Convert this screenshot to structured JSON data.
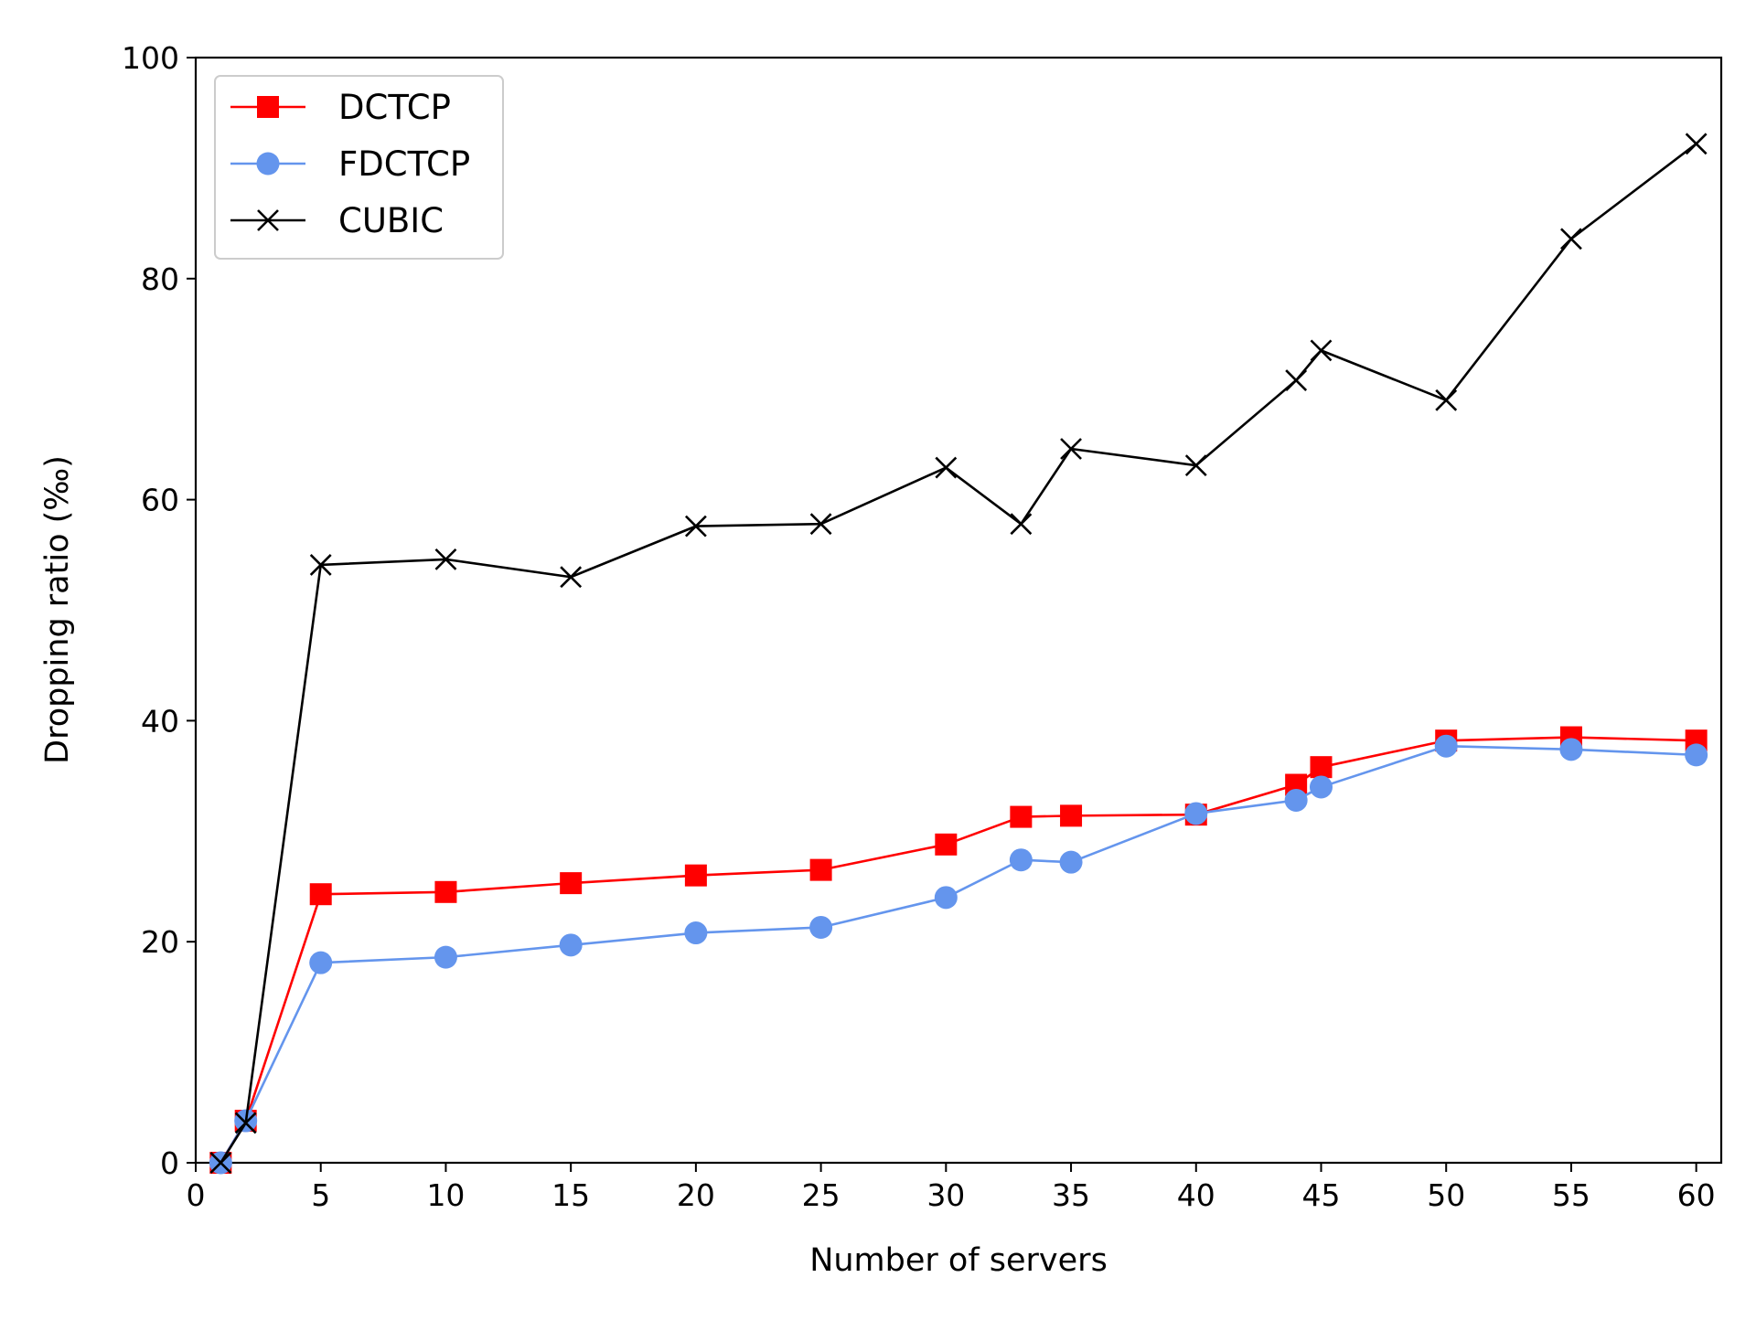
{
  "chart_data": {
    "type": "line",
    "xlabel": "Number of servers",
    "ylabel": "Dropping ratio (‰)",
    "xlim": [
      0,
      61
    ],
    "ylim": [
      0,
      100
    ],
    "xticks": [
      0,
      5,
      10,
      15,
      20,
      25,
      30,
      35,
      40,
      45,
      50,
      55,
      60
    ],
    "yticks": [
      0,
      20,
      40,
      60,
      80,
      100
    ],
    "grid": false,
    "legend_position": "top-left",
    "series": [
      {
        "name": "DCTCP",
        "color": "#ff0000",
        "marker": "square",
        "x": [
          1,
          2,
          5,
          10,
          15,
          20,
          25,
          30,
          33,
          35,
          40,
          44,
          45,
          50,
          55,
          60
        ],
        "y": [
          0,
          3.8,
          24.3,
          24.5,
          25.3,
          26.0,
          26.5,
          28.8,
          31.3,
          31.4,
          31.5,
          34.2,
          35.8,
          38.2,
          38.5,
          38.2
        ]
      },
      {
        "name": "FDCTCP",
        "color": "#6495ed",
        "marker": "circle",
        "x": [
          1,
          2,
          5,
          10,
          15,
          20,
          25,
          30,
          33,
          35,
          40,
          44,
          45,
          50,
          55,
          60
        ],
        "y": [
          0,
          3.8,
          18.1,
          18.6,
          19.7,
          20.8,
          21.3,
          24.0,
          27.4,
          27.2,
          31.6,
          32.8,
          34.0,
          37.7,
          37.4,
          36.9
        ]
      },
      {
        "name": "CUBIC",
        "color": "#000000",
        "marker": "x",
        "x": [
          1,
          2,
          5,
          10,
          15,
          20,
          25,
          30,
          33,
          35,
          40,
          44,
          45,
          50,
          55,
          60
        ],
        "y": [
          0,
          3.6,
          54.1,
          54.6,
          53.0,
          57.6,
          57.8,
          62.9,
          57.8,
          64.6,
          63.1,
          70.8,
          73.5,
          69.0,
          83.6,
          92.2
        ]
      }
    ]
  }
}
